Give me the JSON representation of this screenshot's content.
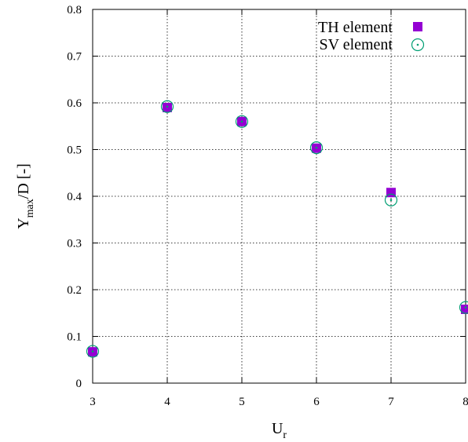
{
  "chart_data": {
    "type": "scatter",
    "title": "",
    "xlabel": {
      "main": "U",
      "sub": "r"
    },
    "ylabel": {
      "main": "Y",
      "sub": "max",
      "rest": "/D [-]"
    },
    "xlim": [
      3,
      8
    ],
    "ylim": [
      0,
      0.8
    ],
    "xticks": [
      "3",
      "4",
      "5",
      "6",
      "7",
      "8"
    ],
    "yticks": [
      "0",
      "0.1",
      "0.2",
      "0.3",
      "0.4",
      "0.5",
      "0.6",
      "0.7",
      "0.8"
    ],
    "grid": true,
    "legend_position": "top-right",
    "series": [
      {
        "name": "TH element",
        "marker": "filled-square",
        "color": "#9400d3",
        "x": [
          3,
          4,
          5,
          6,
          7,
          8
        ],
        "y": [
          0.067,
          0.59,
          0.56,
          0.503,
          0.408,
          0.158
        ]
      },
      {
        "name": "SV element",
        "marker": "circle-dot",
        "color": "#009e73",
        "x": [
          3,
          4,
          5,
          6,
          7,
          8
        ],
        "y": [
          0.068,
          0.592,
          0.56,
          0.504,
          0.392,
          0.162
        ]
      }
    ]
  }
}
